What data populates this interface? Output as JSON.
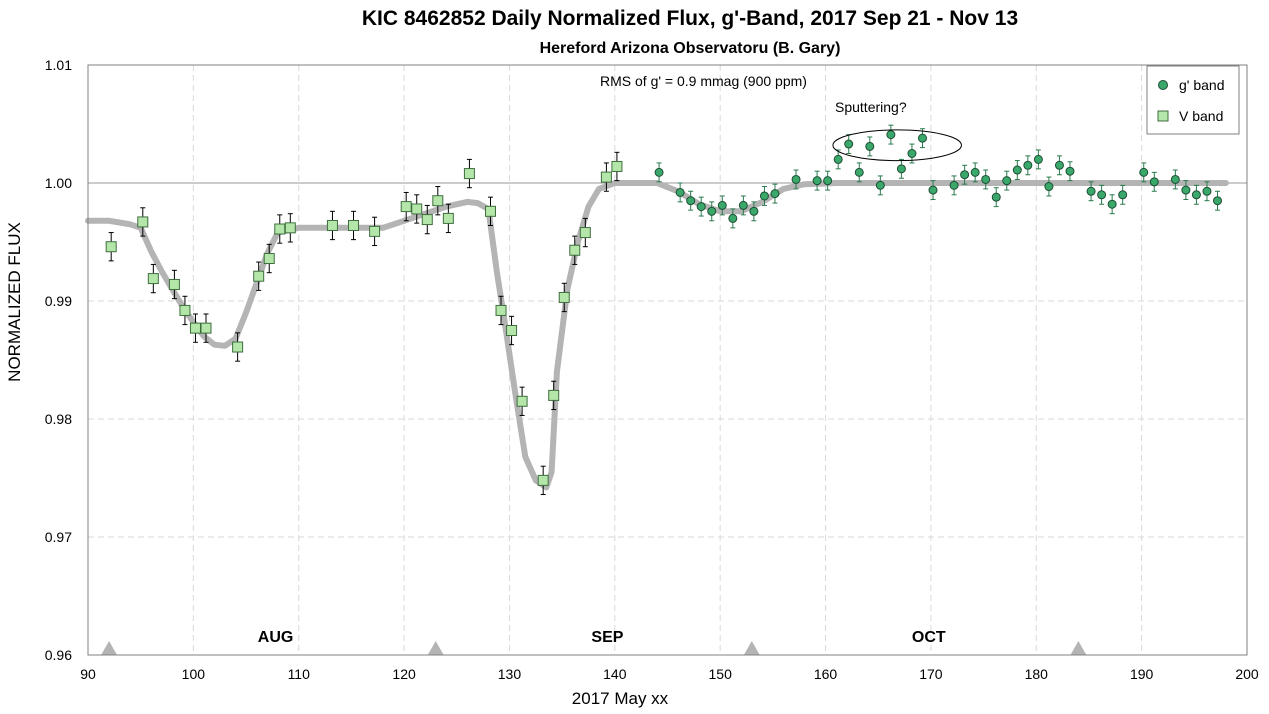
{
  "chart_data": {
    "type": "scatter",
    "title": "KIC 8462852 Daily  Normalized Flux, g'-Band, 2017 Sep 21 - Nov 13",
    "subtitle": "Hereford Arizona Observatoru (B. Gary)",
    "xlabel": "2017 May xx",
    "ylabel": "NORMALIZED FLUX",
    "xlim": [
      90,
      200
    ],
    "ylim": [
      0.96,
      1.01
    ],
    "xticks": [
      "90",
      "100",
      "110",
      "120",
      "130",
      "140",
      "150",
      "160",
      "170",
      "180",
      "190",
      "200"
    ],
    "yticks": [
      "0.96",
      "0.97",
      "0.98",
      "0.99",
      "1.00",
      "1.01"
    ],
    "grid": true,
    "legend_position": "top-right",
    "reference_line": 1.0,
    "annotations": {
      "rms": "RMS of g' = 0.9 mmag (900 ppm)",
      "sputtering": "Sputtering?"
    },
    "ellipse_center": [
      166.8,
      1.0032
    ],
    "ellipse_radii": [
      6.1,
      0.0013
    ],
    "months": [
      {
        "label": "AUG",
        "x": 107.8,
        "marker_x": 92
      },
      {
        "label": "SEP",
        "x": 139.3,
        "marker_x": 123
      },
      {
        "label": "OCT",
        "x": 169.8,
        "marker_x": 153
      },
      {
        "label": "",
        "x": 184,
        "marker_x": 184
      }
    ],
    "colors": {
      "gband_fill": "#3aa86a",
      "gband_stroke": "#1d4d33",
      "vband_fill": "#b3e6a8",
      "vband_stroke": "#3f6e3f",
      "model": "#b4b4b4",
      "marker": "#b4b4b4",
      "errorbar_v": "#000000",
      "errorbar_g": "#2a7a4e",
      "grid": "#d9d9d9",
      "refline": "#9a9a9a"
    },
    "series": [
      {
        "name": "g' band",
        "marker": "circle",
        "points": [
          [
            144.2,
            1.0009
          ],
          [
            146.2,
            0.9992
          ],
          [
            147.2,
            0.9985
          ],
          [
            148.2,
            0.998
          ],
          [
            149.2,
            0.9976
          ],
          [
            150.2,
            0.9981
          ],
          [
            151.2,
            0.997
          ],
          [
            152.2,
            0.9981
          ],
          [
            153.2,
            0.9976
          ],
          [
            154.2,
            0.9989
          ],
          [
            155.2,
            0.9991
          ],
          [
            157.2,
            1.0003
          ],
          [
            159.2,
            1.0002
          ],
          [
            160.2,
            1.0002
          ],
          [
            161.2,
            1.002
          ],
          [
            162.2,
            1.0033
          ],
          [
            163.2,
            1.0009
          ],
          [
            164.2,
            1.0031
          ],
          [
            165.2,
            0.9998
          ],
          [
            166.2,
            1.0041
          ],
          [
            167.2,
            1.0012
          ],
          [
            168.2,
            1.0025
          ],
          [
            169.2,
            1.0038
          ],
          [
            170.2,
            0.9994
          ],
          [
            172.2,
            0.9998
          ],
          [
            173.2,
            1.0007
          ],
          [
            174.2,
            1.0009
          ],
          [
            175.2,
            1.0003
          ],
          [
            176.2,
            0.9988
          ],
          [
            177.2,
            1.0002
          ],
          [
            178.2,
            1.0011
          ],
          [
            179.2,
            1.0015
          ],
          [
            180.2,
            1.002
          ],
          [
            181.2,
            0.9997
          ],
          [
            182.2,
            1.0015
          ],
          [
            183.2,
            1.001
          ],
          [
            185.2,
            0.9993
          ],
          [
            186.2,
            0.999
          ],
          [
            187.2,
            0.9982
          ],
          [
            188.2,
            0.999
          ],
          [
            190.2,
            1.0009
          ],
          [
            191.2,
            1.0001
          ],
          [
            193.2,
            1.0003
          ],
          [
            194.2,
            0.9994
          ],
          [
            195.2,
            0.999
          ],
          [
            196.2,
            0.9993
          ],
          [
            197.2,
            0.9985
          ]
        ],
        "errors": 0.0008
      },
      {
        "name": "V band",
        "marker": "square",
        "points": [
          [
            92.2,
            0.9946
          ],
          [
            95.2,
            0.9967
          ],
          [
            96.2,
            0.9919
          ],
          [
            98.2,
            0.9914
          ],
          [
            99.2,
            0.9892
          ],
          [
            100.2,
            0.9877
          ],
          [
            101.2,
            0.9877
          ],
          [
            104.2,
            0.9861
          ],
          [
            106.2,
            0.9921
          ],
          [
            107.2,
            0.9936
          ],
          [
            108.2,
            0.9961
          ],
          [
            109.2,
            0.9962
          ],
          [
            113.2,
            0.9964
          ],
          [
            115.2,
            0.9964
          ],
          [
            117.2,
            0.9959
          ],
          [
            120.2,
            0.998
          ],
          [
            121.2,
            0.9978
          ],
          [
            122.2,
            0.9969
          ],
          [
            123.2,
            0.9985
          ],
          [
            124.2,
            0.997
          ],
          [
            126.2,
            1.0008
          ],
          [
            128.2,
            0.9976
          ],
          [
            129.2,
            0.9892
          ],
          [
            130.2,
            0.9875
          ],
          [
            131.2,
            0.9815
          ],
          [
            133.2,
            0.9748
          ],
          [
            134.2,
            0.982
          ],
          [
            135.2,
            0.9903
          ],
          [
            136.2,
            0.9943
          ],
          [
            137.2,
            0.9958
          ],
          [
            139.2,
            1.0005
          ],
          [
            140.2,
            1.0014
          ]
        ],
        "errors": 0.0012
      }
    ],
    "model_curve": [
      [
        90,
        0.9968
      ],
      [
        92,
        0.9968
      ],
      [
        94,
        0.9965
      ],
      [
        95,
        0.9962
      ],
      [
        96,
        0.9942
      ],
      [
        97,
        0.9925
      ],
      [
        98,
        0.991
      ],
      [
        99,
        0.9895
      ],
      [
        100,
        0.9882
      ],
      [
        101,
        0.987
      ],
      [
        102,
        0.9863
      ],
      [
        103,
        0.9862
      ],
      [
        104,
        0.9868
      ],
      [
        105,
        0.989
      ],
      [
        106,
        0.9915
      ],
      [
        107,
        0.994
      ],
      [
        108,
        0.9958
      ],
      [
        110,
        0.9962
      ],
      [
        114,
        0.9962
      ],
      [
        118,
        0.9962
      ],
      [
        120,
        0.9968
      ],
      [
        122,
        0.9974
      ],
      [
        124,
        0.998
      ],
      [
        126,
        0.9984
      ],
      [
        127,
        0.9983
      ],
      [
        128,
        0.9978
      ],
      [
        128.8,
        0.9925
      ],
      [
        129.5,
        0.9885
      ],
      [
        130.5,
        0.9825
      ],
      [
        131.5,
        0.9768
      ],
      [
        132.5,
        0.9748
      ],
      [
        133.5,
        0.9742
      ],
      [
        134,
        0.9755
      ],
      [
        134.5,
        0.984
      ],
      [
        135.5,
        0.991
      ],
      [
        136.5,
        0.995
      ],
      [
        137.5,
        0.998
      ],
      [
        138.5,
        0.9995
      ],
      [
        140,
        1.0
      ],
      [
        144,
        1.0
      ],
      [
        146,
        0.9993
      ],
      [
        148,
        0.9982
      ],
      [
        150,
        0.9976
      ],
      [
        152,
        0.9976
      ],
      [
        154,
        0.9984
      ],
      [
        156,
        0.9995
      ],
      [
        158,
        0.9999
      ],
      [
        161,
        1.0
      ],
      [
        170,
        1.0
      ],
      [
        180,
        1.0
      ],
      [
        190,
        1.0
      ],
      [
        198,
        1.0
      ]
    ]
  }
}
